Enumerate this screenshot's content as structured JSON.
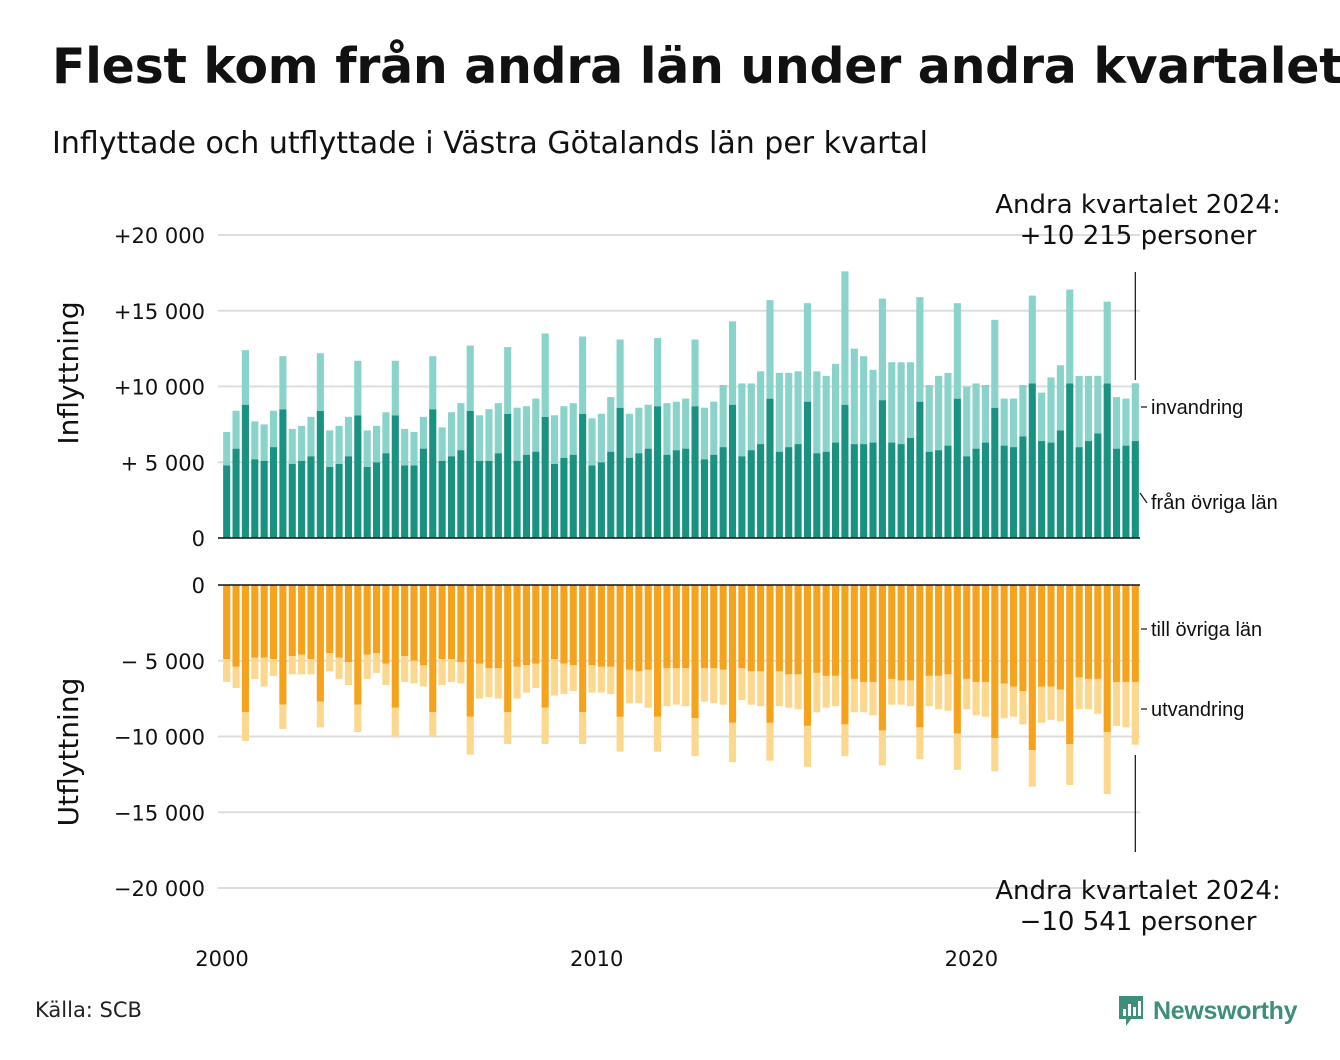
{
  "title": "Flest kom från andra län under andra kvartalet",
  "subtitle": "Inflyttade och utflyttade i Västra Götalands län per kvartal",
  "source": "Källa: SCB",
  "brand": {
    "name": "Newsworthy",
    "icon": "newsworthy-logo-icon",
    "color": "#3d8f7a"
  },
  "colors": {
    "in_domestic": "#1a9282",
    "in_immigration": "#8ad3ca",
    "out_domestic": "#f5a31d",
    "out_emigration": "#fcd88f",
    "grid": "#dddddd"
  },
  "annotations": {
    "top": [
      "Andra kvartalet 2024:",
      "+10 215 personer"
    ],
    "bottom": [
      "Andra kvartalet 2024:",
      "−10 541 personer"
    ]
  },
  "chart_data": {
    "type": "bar",
    "stacked": true,
    "x_start": "2000 Q1",
    "x_end": "2024 Q2",
    "x_ticks": [
      {
        "year": 2000,
        "label": "2000"
      },
      {
        "year": 2010,
        "label": "2010"
      },
      {
        "year": 2020,
        "label": "2020"
      }
    ],
    "panels": [
      {
        "name": "inflow",
        "ylabel": "Inflyttning",
        "ylim": [
          0,
          20000
        ],
        "yticks": [
          {
            "value": 0,
            "label": "0"
          },
          {
            "value": 5000,
            "label": "+ 5 000"
          },
          {
            "value": 10000,
            "label": "+10 000"
          },
          {
            "value": 15000,
            "label": "+15 000"
          },
          {
            "value": 20000,
            "label": "+20 000"
          }
        ],
        "series": [
          {
            "name": "från övriga län",
            "values": [
              4800,
              5900,
              8800,
              5200,
              5100,
              6000,
              8500,
              4900,
              5100,
              5400,
              8400,
              4700,
              4900,
              5400,
              8100,
              4700,
              5000,
              5600,
              8100,
              4800,
              4800,
              5900,
              8500,
              5100,
              5400,
              5800,
              8400,
              5100,
              5100,
              5600,
              8200,
              5100,
              5500,
              5700,
              8000,
              4900,
              5300,
              5500,
              8200,
              4800,
              5000,
              5700,
              8600,
              5300,
              5600,
              5900,
              8700,
              5500,
              5800,
              5900,
              8700,
              5200,
              5500,
              6000,
              8800,
              5400,
              5800,
              6200,
              9200,
              5700,
              6000,
              6200,
              9000,
              5600,
              5700,
              6300,
              8800,
              6200,
              6200,
              6300,
              9100,
              6300,
              6200,
              6600,
              9000,
              5700,
              5800,
              6100,
              9200,
              5400,
              5900,
              6300,
              8600,
              6100,
              6000,
              6700,
              10200,
              6400,
              6300,
              7100,
              10200,
              6000,
              6400,
              6900,
              10200,
              5900,
              6100,
              6400
            ]
          },
          {
            "name": "invandring",
            "values": [
              2200,
              2500,
              3600,
              2500,
              2400,
              2400,
              3500,
              2300,
              2300,
              2600,
              3800,
              2400,
              2500,
              2600,
              3600,
              2400,
              2400,
              2700,
              3600,
              2400,
              2200,
              2100,
              3500,
              2200,
              2900,
              3100,
              4300,
              3000,
              3400,
              3300,
              4400,
              3500,
              3200,
              3500,
              5500,
              3200,
              3400,
              3400,
              5100,
              3100,
              3200,
              3600,
              4500,
              2900,
              3000,
              2900,
              4500,
              3400,
              3200,
              3300,
              4400,
              3400,
              3500,
              4100,
              5500,
              4800,
              4400,
              4800,
              6500,
              5200,
              4900,
              4800,
              6500,
              5400,
              5000,
              5200,
              8800,
              6300,
              5800,
              4800,
              6700,
              5300,
              5400,
              5000,
              6900,
              4400,
              4900,
              4800,
              6300,
              4600,
              4300,
              3800,
              5800,
              3100,
              3200,
              3400,
              5800,
              3200,
              4300,
              4300,
              6200,
              4700,
              4300,
              3800,
              5400,
              3400,
              3100,
              3815
            ]
          }
        ]
      },
      {
        "name": "outflow",
        "ylabel": "Utflyttning",
        "ylim": [
          -20000,
          0
        ],
        "yticks": [
          {
            "value": 0,
            "label": "0"
          },
          {
            "value": -5000,
            "label": "− 5 000"
          },
          {
            "value": -10000,
            "label": "−10 000"
          },
          {
            "value": -15000,
            "label": "−15 000"
          },
          {
            "value": -20000,
            "label": "−20 000"
          }
        ],
        "series": [
          {
            "name": "till övriga län",
            "values": [
              -4900,
              -5400,
              -8400,
              -4800,
              -4800,
              -4900,
              -7900,
              -4700,
              -4600,
              -4900,
              -7700,
              -4500,
              -4800,
              -5100,
              -7900,
              -4600,
              -4500,
              -5200,
              -8100,
              -4700,
              -5000,
              -5300,
              -8400,
              -4900,
              -4900,
              -5100,
              -8700,
              -5200,
              -5500,
              -5500,
              -8400,
              -5400,
              -5300,
              -5200,
              -8100,
              -4900,
              -5200,
              -5300,
              -8400,
              -5300,
              -5400,
              -5400,
              -8700,
              -5600,
              -5700,
              -5600,
              -8700,
              -5500,
              -5500,
              -5500,
              -8800,
              -5500,
              -5500,
              -5600,
              -9100,
              -5500,
              -5700,
              -5700,
              -9100,
              -5700,
              -5900,
              -5900,
              -9300,
              -5800,
              -6000,
              -6000,
              -9200,
              -6200,
              -6400,
              -6400,
              -9600,
              -6200,
              -6300,
              -6300,
              -9400,
              -6000,
              -6000,
              -5900,
              -9800,
              -6200,
              -6400,
              -6400,
              -10100,
              -6500,
              -6700,
              -7000,
              -10900,
              -6700,
              -6700,
              -6900,
              -10500,
              -6100,
              -6200,
              -6200,
              -9700,
              -6400,
              -6400,
              -6400
            ]
          },
          {
            "name": "utvandring",
            "values": [
              -1500,
              -1400,
              -1900,
              -1400,
              -1900,
              -1100,
              -1600,
              -1200,
              -1300,
              -1000,
              -1700,
              -1200,
              -1400,
              -1500,
              -1800,
              -1600,
              -1300,
              -1400,
              -1900,
              -1700,
              -1500,
              -1400,
              -1600,
              -1700,
              -1500,
              -1400,
              -2500,
              -2300,
              -1900,
              -2000,
              -2100,
              -2100,
              -1800,
              -1600,
              -2400,
              -2400,
              -2000,
              -1700,
              -2100,
              -1800,
              -1700,
              -1800,
              -2300,
              -2200,
              -2100,
              -2500,
              -2300,
              -2500,
              -2400,
              -2500,
              -2500,
              -2200,
              -2300,
              -2300,
              -2600,
              -2100,
              -2200,
              -2300,
              -2500,
              -2300,
              -2200,
              -2300,
              -2700,
              -2600,
              -2100,
              -2000,
              -2100,
              -2200,
              -2000,
              -2200,
              -2300,
              -1700,
              -1600,
              -1700,
              -2100,
              -2000,
              -2200,
              -2400,
              -2400,
              -2000,
              -2200,
              -2300,
              -2200,
              -2300,
              -2000,
              -2200,
              -2400,
              -2400,
              -2200,
              -2100,
              -2700,
              -2100,
              -2000,
              -2300,
              -4100,
              -2900,
              -3000,
              -4141
            ]
          }
        ]
      }
    ],
    "legend": [
      {
        "panel": "inflow",
        "label": "invandring",
        "series": "invandring"
      },
      {
        "panel": "inflow",
        "label": "från övriga län",
        "series": "från övriga län"
      },
      {
        "panel": "outflow",
        "label": "till övriga län",
        "series": "till övriga län"
      },
      {
        "panel": "outflow",
        "label": "utvandring",
        "series": "utvandring"
      }
    ]
  }
}
